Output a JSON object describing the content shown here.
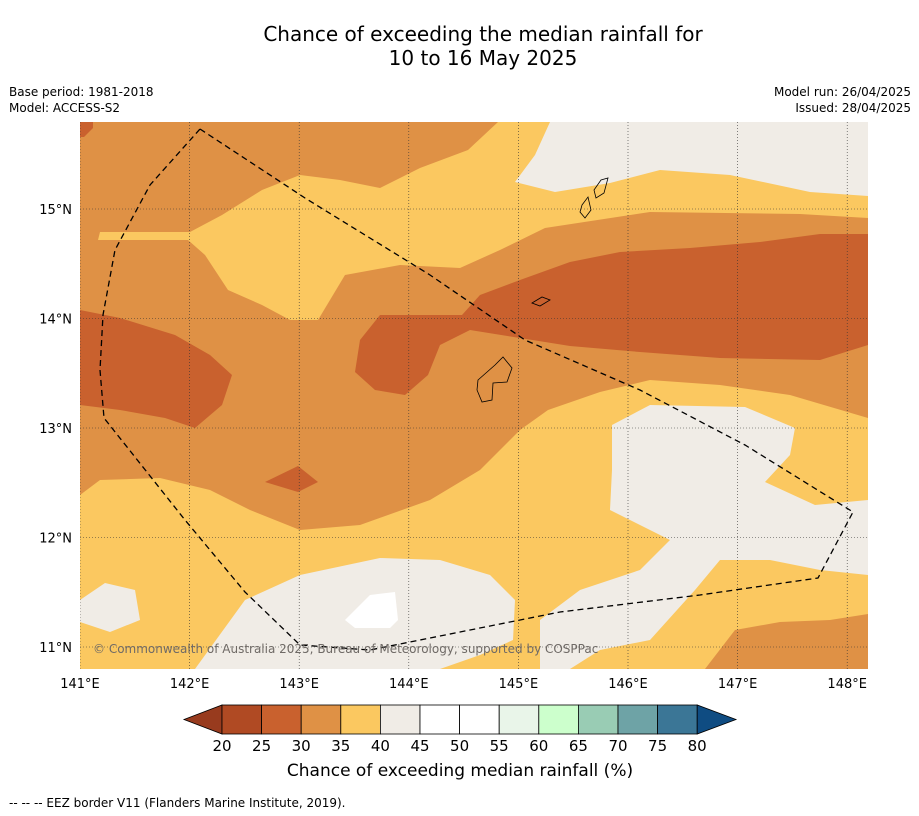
{
  "title": {
    "line1": "Chance of exceeding the median rainfall for",
    "line2": "10 to 16 May 2025"
  },
  "meta": {
    "base_period": "Base period: 1981-2018",
    "model": "Model: ACCESS-S2",
    "model_run": "Model run: 26/04/2025",
    "issued": "Issued: 28/04/2025"
  },
  "map": {
    "lon_labels": [
      "141°E",
      "142°E",
      "143°E",
      "144°E",
      "145°E",
      "146°E",
      "147°E",
      "148°E"
    ],
    "lat_labels": [
      "15°N",
      "14°N",
      "13°N",
      "12°N",
      "11°N"
    ],
    "lon_values": [
      141,
      142,
      143,
      144,
      145,
      146,
      147,
      148
    ],
    "lat_values": [
      15,
      14,
      13,
      12,
      11
    ],
    "copyright": "© Commonwealth of Australia 2025, Bureau of Meteorology, supported by COSPPac"
  },
  "colorbar": {
    "ticks": [
      "20",
      "25",
      "30",
      "35",
      "40",
      "45",
      "50",
      "55",
      "60",
      "65",
      "70",
      "75",
      "80"
    ],
    "colors": [
      "#b04a23",
      "#c9612e",
      "#df9145",
      "#fbc860",
      "#f0ece6",
      "#ffffff",
      "#ffffff",
      "#e9f5e9",
      "#ccffcc",
      "#99ccb4",
      "#6ea3a6",
      "#3b7696"
    ],
    "under_color": "#983b1e",
    "over_color": "#0f4c82",
    "label": "Chance of exceeding median rainfall (%)"
  },
  "footnote": "--  --  -- EEZ border V11 (Flanders Marine Institute, 2019)."
}
